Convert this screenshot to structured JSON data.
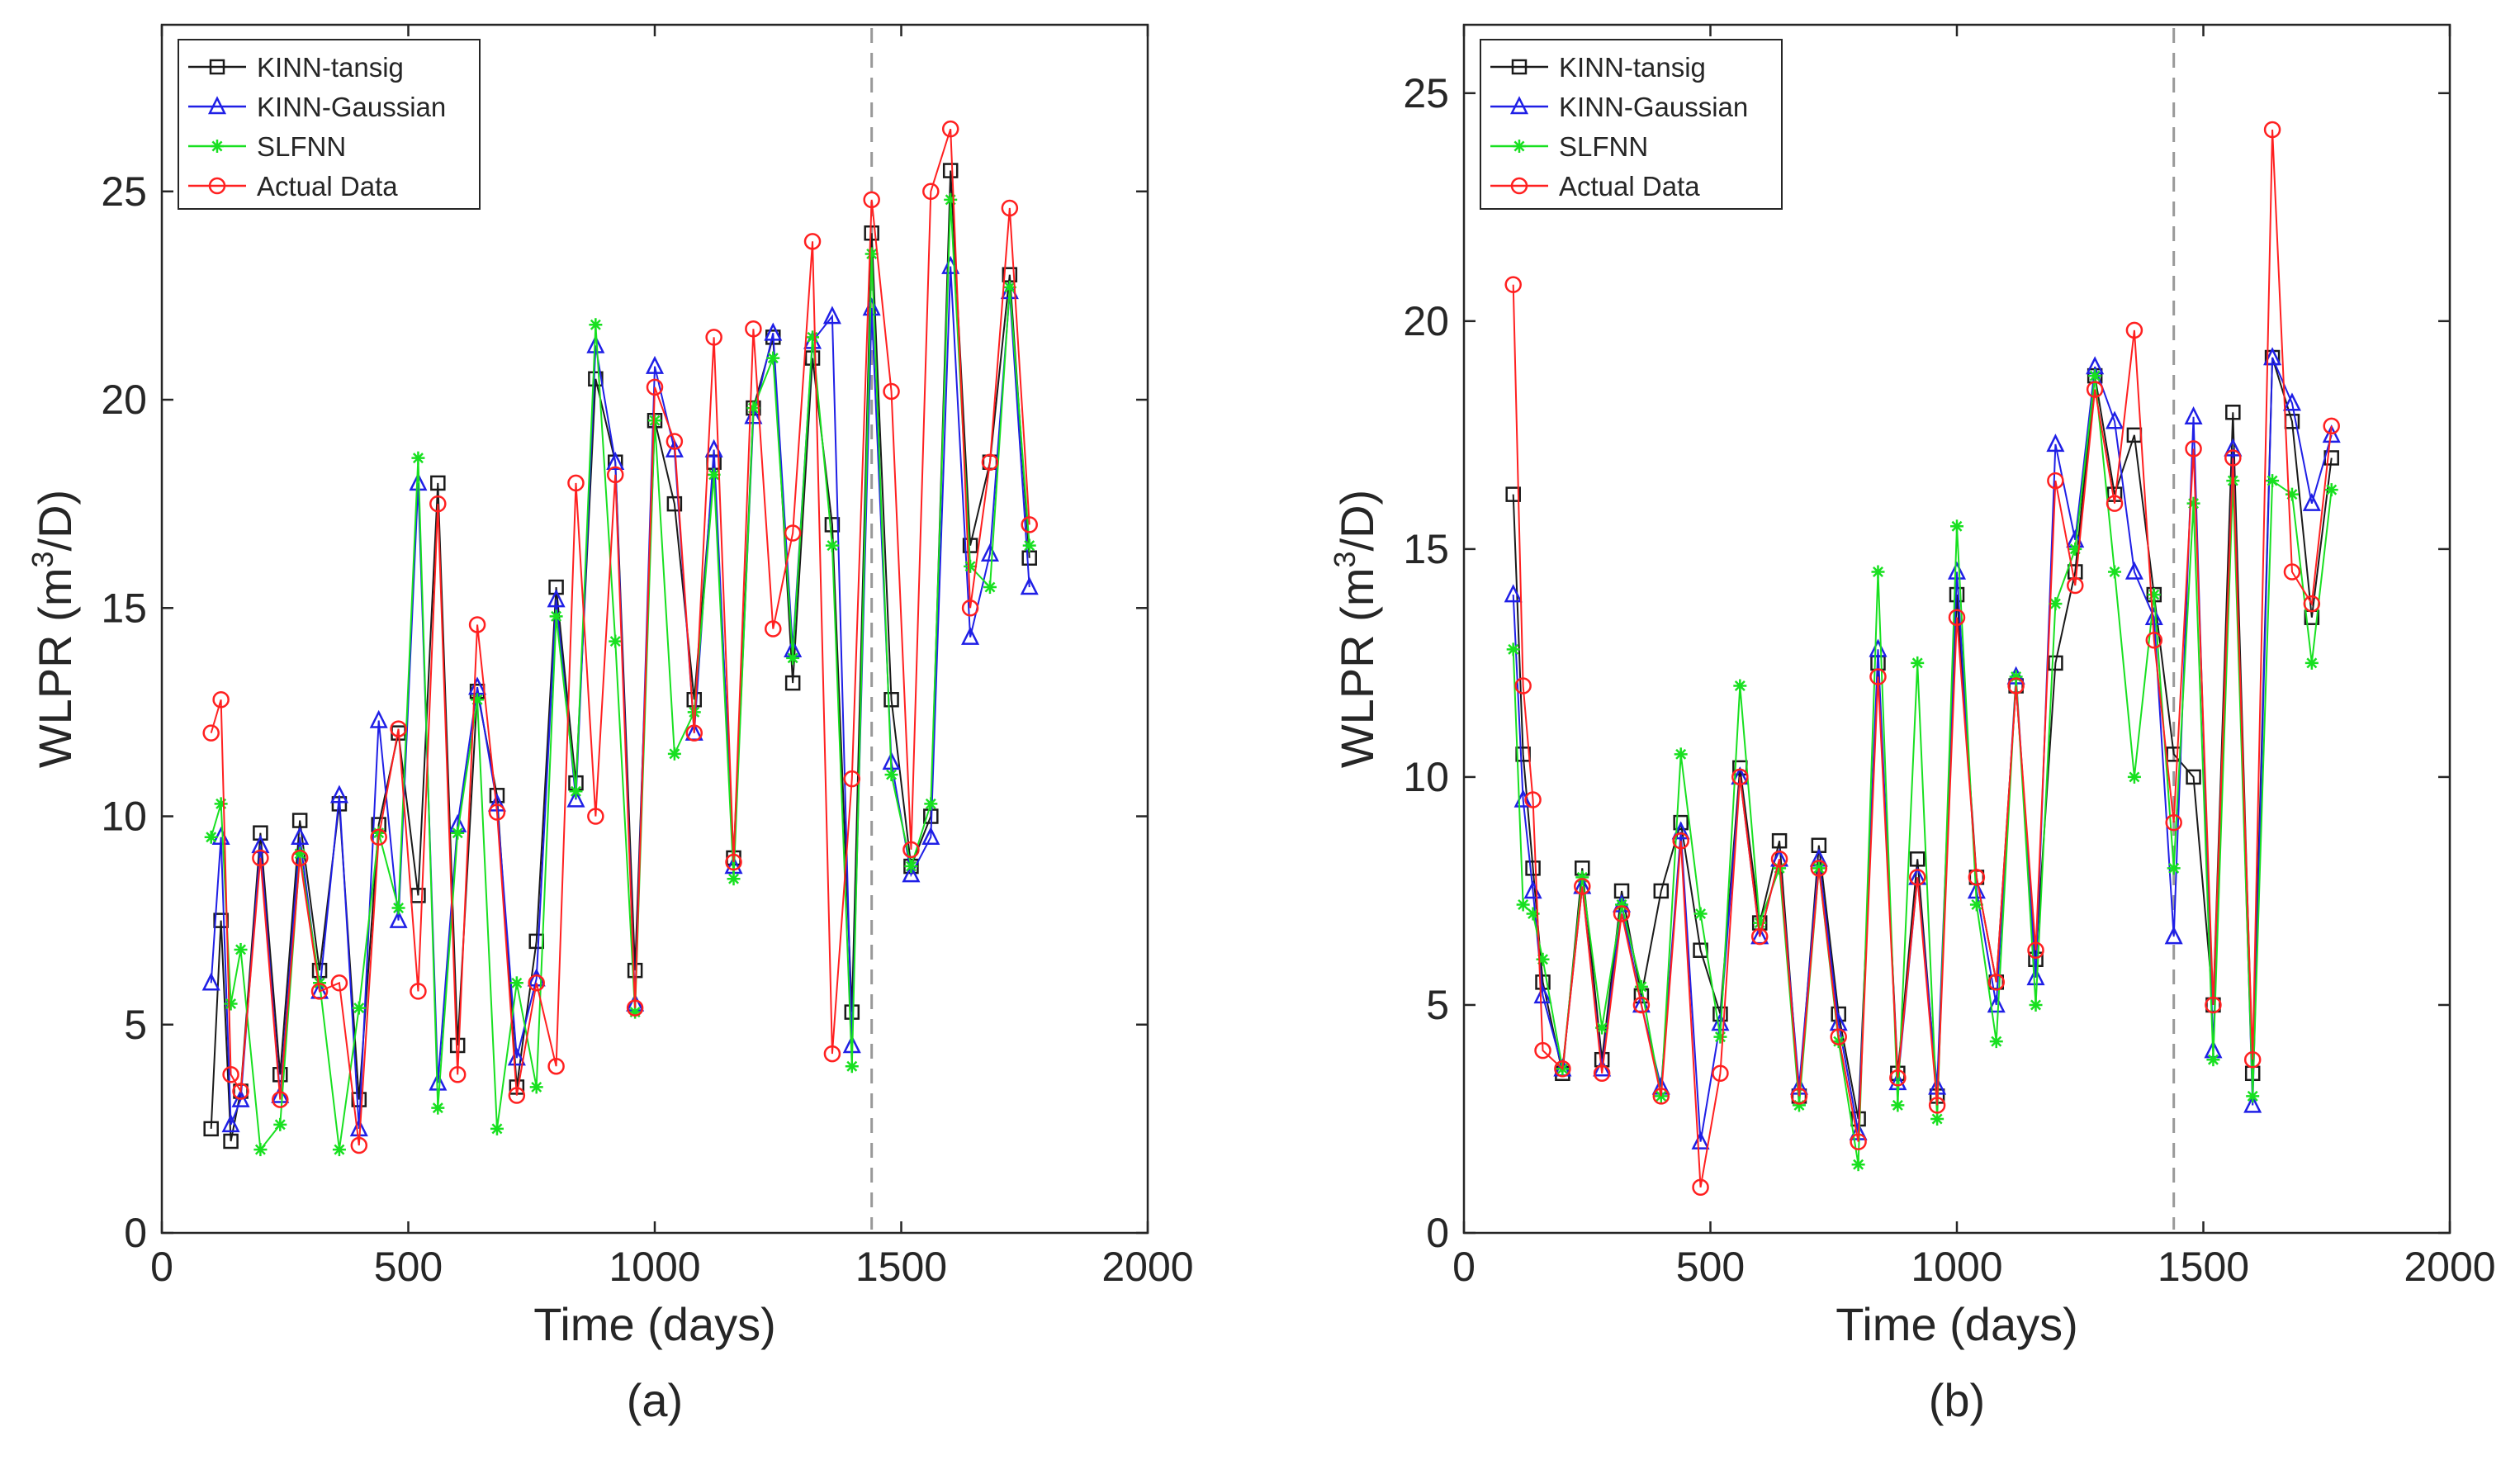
{
  "colors": {
    "kinn_tansig": "#1a1a1a",
    "kinn_gaussian": "#1f1fe6",
    "slfnn": "#18e020",
    "actual": "#ff2020",
    "split_line": "#999999",
    "axis": "#262626"
  },
  "chart_data": [
    {
      "type": "line",
      "panel_label": "(a)",
      "xlabel": "Time (days)",
      "ylabel_main": "WLPR (m",
      "ylabel_sup": "3",
      "ylabel_tail": "/D)",
      "xlim": [
        0,
        2000
      ],
      "ylim": [
        0,
        29
      ],
      "xticks": [
        0,
        500,
        1000,
        1500,
        2000
      ],
      "xtick_labels": [
        "0",
        "500",
        "1000",
        "1500",
        "2000"
      ],
      "yticks": [
        0,
        5,
        10,
        15,
        20,
        25
      ],
      "ytick_labels": [
        "0",
        "5",
        "10",
        "15",
        "20",
        "25"
      ],
      "train_test_split_x": 1440,
      "legend_position": "top-left",
      "series": [
        {
          "name": "KINN-tansig",
          "key": "kinn_tansig",
          "marker": "square",
          "x": [
            100,
            120,
            140,
            160,
            200,
            240,
            280,
            320,
            360,
            400,
            440,
            480,
            520,
            560,
            600,
            640,
            680,
            720,
            760,
            800,
            840,
            880,
            920,
            960,
            1000,
            1040,
            1080,
            1120,
            1160,
            1200,
            1240,
            1280,
            1320,
            1360,
            1400,
            1440,
            1480,
            1520,
            1560,
            1600,
            1640,
            1680,
            1720,
            1760
          ],
          "y": [
            2.5,
            7.5,
            2.2,
            3.4,
            9.6,
            3.8,
            9.9,
            6.3,
            10.3,
            3.2,
            9.8,
            12.0,
            8.1,
            18.0,
            4.5,
            13.0,
            10.5,
            3.5,
            7.0,
            15.5,
            10.8,
            20.5,
            18.5,
            6.3,
            19.5,
            17.5,
            12.8,
            18.5,
            9.0,
            19.8,
            21.5,
            13.2,
            21.0,
            17.0,
            5.3,
            24.0,
            12.8,
            8.8,
            10.0,
            25.5,
            16.5,
            18.5,
            23.0,
            16.2
          ]
        },
        {
          "name": "KINN-Gaussian",
          "key": "kinn_gaussian",
          "marker": "triangle",
          "x": [
            100,
            120,
            140,
            160,
            200,
            240,
            280,
            320,
            360,
            400,
            440,
            480,
            520,
            560,
            600,
            640,
            680,
            720,
            760,
            800,
            840,
            880,
            920,
            960,
            1000,
            1040,
            1080,
            1120,
            1160,
            1200,
            1240,
            1280,
            1320,
            1360,
            1400,
            1440,
            1480,
            1520,
            1560,
            1600,
            1640,
            1680,
            1720,
            1760
          ],
          "y": [
            6.0,
            9.5,
            2.6,
            3.2,
            9.3,
            3.3,
            9.5,
            5.8,
            10.5,
            2.5,
            12.3,
            7.5,
            18.0,
            3.6,
            9.8,
            13.1,
            10.3,
            4.2,
            6.1,
            15.2,
            10.4,
            21.3,
            18.5,
            5.5,
            20.8,
            18.8,
            12.0,
            18.8,
            8.8,
            19.6,
            21.6,
            14.0,
            21.4,
            22.0,
            4.5,
            22.2,
            11.3,
            8.6,
            9.5,
            23.2,
            14.3,
            16.3,
            22.6,
            15.5
          ]
        },
        {
          "name": "SLFNN",
          "key": "slfnn",
          "marker": "star",
          "x": [
            100,
            120,
            140,
            160,
            200,
            240,
            280,
            320,
            360,
            400,
            440,
            480,
            520,
            560,
            600,
            640,
            680,
            720,
            760,
            800,
            840,
            880,
            920,
            960,
            1000,
            1040,
            1080,
            1120,
            1160,
            1200,
            1240,
            1280,
            1320,
            1360,
            1400,
            1440,
            1480,
            1520,
            1560,
            1600,
            1640,
            1680,
            1720,
            1760
          ],
          "y": [
            9.5,
            10.3,
            5.5,
            6.8,
            2.0,
            2.6,
            9.1,
            6.0,
            2.0,
            5.4,
            9.6,
            7.8,
            18.6,
            3.0,
            9.6,
            12.8,
            2.5,
            6.0,
            3.5,
            14.8,
            10.6,
            21.8,
            14.2,
            5.3,
            19.5,
            11.5,
            12.5,
            18.2,
            8.5,
            19.8,
            21.0,
            13.8,
            21.5,
            16.5,
            4.0,
            23.5,
            11.0,
            8.8,
            10.3,
            24.8,
            16.0,
            15.5,
            22.7,
            16.5
          ]
        },
        {
          "name": "Actual Data",
          "key": "actual",
          "marker": "circle",
          "x": [
            100,
            120,
            140,
            160,
            200,
            240,
            280,
            320,
            360,
            400,
            440,
            480,
            520,
            560,
            600,
            640,
            680,
            720,
            760,
            800,
            840,
            880,
            920,
            960,
            1000,
            1040,
            1080,
            1120,
            1160,
            1200,
            1240,
            1280,
            1320,
            1360,
            1400,
            1440,
            1480,
            1520,
            1560,
            1600,
            1640,
            1680,
            1720,
            1760
          ],
          "y": [
            12.0,
            12.8,
            3.8,
            3.4,
            9.0,
            3.2,
            9.0,
            5.8,
            6.0,
            2.1,
            9.5,
            12.1,
            5.8,
            17.5,
            3.8,
            14.6,
            10.1,
            3.3,
            6.0,
            4.0,
            18.0,
            10.0,
            18.2,
            5.4,
            20.3,
            19.0,
            12.0,
            21.5,
            8.9,
            21.7,
            14.5,
            16.8,
            23.8,
            4.3,
            10.9,
            24.8,
            20.2,
            9.2,
            25.0,
            26.5,
            15.0,
            18.5,
            24.6,
            17.0
          ]
        }
      ]
    },
    {
      "type": "line",
      "panel_label": "(b)",
      "xlabel": "Time (days)",
      "ylabel_main": "WLPR (m",
      "ylabel_sup": "3",
      "ylabel_tail": "/D)",
      "xlim": [
        0,
        2000
      ],
      "ylim": [
        0,
        26.5
      ],
      "xticks": [
        0,
        500,
        1000,
        1500,
        2000
      ],
      "xtick_labels": [
        "0",
        "500",
        "1000",
        "1500",
        "2000"
      ],
      "yticks": [
        0,
        5,
        10,
        15,
        20,
        25
      ],
      "ytick_labels": [
        "0",
        "5",
        "10",
        "15",
        "20",
        "25"
      ],
      "train_test_split_x": 1440,
      "legend_position": "top-left",
      "series": [
        {
          "name": "KINN-tansig",
          "key": "kinn_tansig",
          "marker": "square",
          "x": [
            100,
            120,
            140,
            160,
            200,
            240,
            280,
            320,
            360,
            400,
            440,
            480,
            520,
            560,
            600,
            640,
            680,
            720,
            760,
            800,
            840,
            880,
            920,
            960,
            1000,
            1040,
            1080,
            1120,
            1160,
            1200,
            1240,
            1280,
            1320,
            1360,
            1400,
            1440,
            1480,
            1520,
            1560,
            1600,
            1640,
            1680,
            1720,
            1760
          ],
          "y": [
            16.2,
            10.5,
            8.0,
            5.5,
            3.5,
            8.0,
            3.8,
            7.5,
            5.2,
            7.5,
            9.0,
            6.2,
            4.8,
            10.2,
            6.8,
            8.6,
            3.0,
            8.5,
            4.8,
            2.5,
            12.5,
            3.5,
            8.2,
            3.0,
            14.0,
            7.8,
            5.5,
            12.0,
            6.0,
            12.5,
            14.5,
            18.8,
            16.2,
            17.5,
            14.0,
            10.5,
            10.0,
            5.0,
            18.0,
            3.5,
            19.2,
            17.8,
            13.5,
            17.0
          ]
        },
        {
          "name": "KINN-Gaussian",
          "key": "kinn_gaussian",
          "marker": "triangle",
          "x": [
            100,
            120,
            140,
            160,
            200,
            240,
            280,
            320,
            360,
            400,
            440,
            480,
            520,
            560,
            600,
            640,
            680,
            720,
            760,
            800,
            840,
            880,
            920,
            960,
            1000,
            1040,
            1080,
            1120,
            1160,
            1200,
            1240,
            1280,
            1320,
            1360,
            1400,
            1440,
            1480,
            1520,
            1560,
            1600,
            1640,
            1680,
            1720,
            1760
          ],
          "y": [
            14.0,
            9.5,
            7.5,
            5.2,
            3.6,
            7.6,
            3.6,
            7.2,
            5.0,
            3.2,
            8.8,
            2.0,
            4.6,
            10.0,
            6.5,
            8.2,
            3.2,
            8.2,
            4.6,
            2.2,
            12.8,
            3.3,
            7.8,
            3.2,
            14.5,
            7.5,
            5.0,
            12.2,
            5.6,
            17.3,
            15.2,
            19.0,
            17.8,
            14.5,
            13.5,
            6.5,
            17.9,
            4.0,
            17.2,
            2.8,
            19.2,
            18.2,
            16.0,
            17.5
          ]
        },
        {
          "name": "SLFNN",
          "key": "slfnn",
          "marker": "star",
          "x": [
            100,
            120,
            140,
            160,
            200,
            240,
            280,
            320,
            360,
            400,
            440,
            480,
            520,
            560,
            600,
            640,
            680,
            720,
            760,
            800,
            840,
            880,
            920,
            960,
            1000,
            1040,
            1080,
            1120,
            1160,
            1200,
            1240,
            1280,
            1320,
            1360,
            1400,
            1440,
            1480,
            1520,
            1560,
            1600,
            1640,
            1680,
            1720,
            1760
          ],
          "y": [
            12.8,
            7.2,
            7.0,
            6.0,
            3.6,
            7.8,
            4.5,
            7.2,
            5.4,
            3.0,
            10.5,
            7.0,
            4.3,
            12.0,
            6.8,
            8.0,
            2.8,
            8.0,
            4.2,
            1.5,
            14.5,
            2.8,
            12.5,
            2.5,
            15.5,
            7.2,
            4.2,
            12.2,
            5.0,
            13.8,
            15.0,
            18.8,
            14.5,
            10.0,
            14.0,
            8.0,
            16.0,
            3.8,
            16.5,
            3.0,
            16.5,
            16.2,
            12.5,
            16.3
          ]
        },
        {
          "name": "Actual Data",
          "key": "actual",
          "marker": "circle",
          "x": [
            100,
            120,
            140,
            160,
            200,
            240,
            280,
            320,
            360,
            400,
            440,
            480,
            520,
            560,
            600,
            640,
            680,
            720,
            760,
            800,
            840,
            880,
            920,
            960,
            1000,
            1040,
            1080,
            1120,
            1160,
            1200,
            1240,
            1280,
            1320,
            1360,
            1400,
            1440,
            1480,
            1520,
            1560,
            1600,
            1640,
            1680,
            1720,
            1760
          ],
          "y": [
            20.8,
            12.0,
            9.5,
            4.0,
            3.6,
            7.6,
            3.5,
            7.0,
            5.0,
            3.0,
            8.6,
            1.0,
            3.5,
            10.0,
            6.5,
            8.2,
            3.0,
            8.0,
            4.3,
            2.0,
            12.2,
            3.4,
            7.8,
            2.8,
            13.5,
            7.8,
            5.5,
            12.0,
            6.2,
            16.5,
            14.2,
            18.5,
            16.0,
            19.8,
            13.0,
            9.0,
            17.2,
            5.0,
            17.0,
            3.8,
            24.2,
            14.5,
            13.8,
            17.7
          ]
        }
      ]
    }
  ]
}
